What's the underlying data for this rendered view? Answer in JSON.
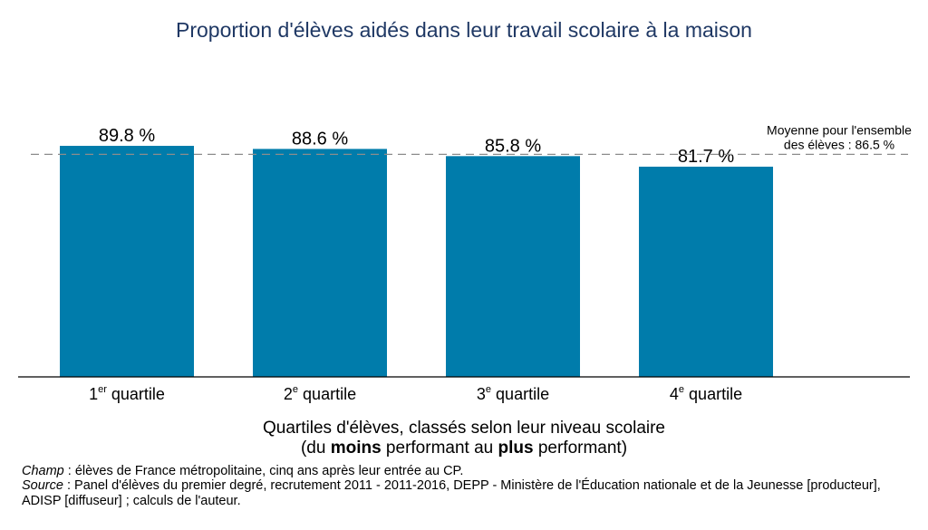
{
  "chart_data": {
    "type": "bar",
    "title": "Proportion d'élèves aidés dans leur travail scolaire à la maison",
    "categories": [
      {
        "num": "1",
        "sup": "er",
        "label": "quartile"
      },
      {
        "num": "2",
        "sup": "e",
        "label": "quartile"
      },
      {
        "num": "3",
        "sup": "e",
        "label": "quartile"
      },
      {
        "num": "4",
        "sup": "e",
        "label": "quartile"
      }
    ],
    "values": [
      89.8,
      88.6,
      85.8,
      81.7
    ],
    "value_labels": [
      "89.8 %",
      "88.6 %",
      "85.8 %",
      "81.7 %"
    ],
    "reference_line": {
      "value": 86.5,
      "label_line1": "Moyenne pour l'ensemble",
      "label_line2": "des élèves : 86.5 %"
    },
    "bar_color": "#007cab",
    "ylim": [
      0,
      100
    ],
    "grid": false,
    "xlabel_line1": "Quartiles d'élèves, classés selon leur niveau scolaire",
    "xlabel_line2": {
      "p1": "(du ",
      "b1": "moins",
      "p2": " performant au ",
      "b2": "plus",
      "p3": " performant)"
    }
  },
  "notes": {
    "champ_label": "Champ",
    "champ_text": " : élèves de France métropolitaine, cinq ans après leur entrée au CP.",
    "source_label": "Source",
    "source_text": " : Panel d'élèves du premier degré, recrutement 2011 - 2011-2016, DEPP - Ministère de l'Éducation nationale et de la Jeunesse [producteur], ADISP [diffuseur] ; calculs de l'auteur."
  }
}
